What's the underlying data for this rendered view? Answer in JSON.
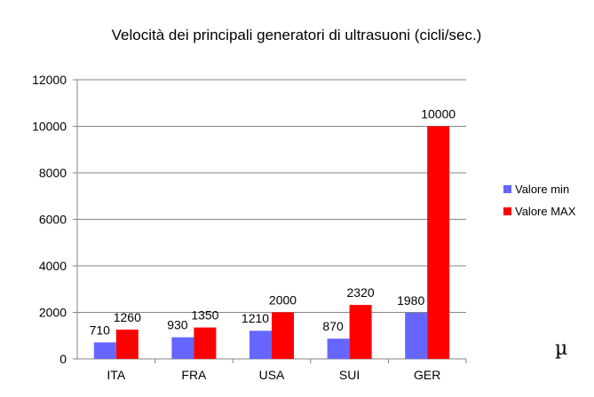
{
  "chart_data": {
    "type": "bar",
    "title": "Velocità dei principali generatori di ultrasuoni  (cicli/sec.)",
    "categories": [
      "ITA",
      "FRA",
      "USA",
      "SUI",
      "GER"
    ],
    "series": [
      {
        "name": "Valore min",
        "color": "#6666ff",
        "values": [
          710,
          930,
          1210,
          870,
          1980
        ],
        "labels": [
          "710",
          "930",
          "1210",
          "870",
          "1980"
        ]
      },
      {
        "name": "Valore MAX",
        "color": "#ff0000",
        "values": [
          1260,
          1350,
          2000,
          2320,
          10000
        ],
        "labels": [
          "1260",
          "1350",
          "2000",
          "2320",
          "10000"
        ]
      }
    ],
    "ylim": [
      0,
      12000
    ],
    "yticks": [
      "0",
      "2000",
      "4000",
      "6000",
      "8000",
      "10000",
      "12000"
    ],
    "grid": "horizontal",
    "legend_position": "right"
  },
  "annotation": "µ"
}
